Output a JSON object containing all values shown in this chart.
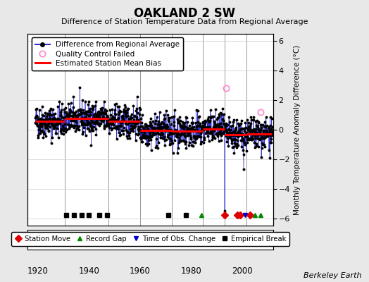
{
  "title": "OAKLAND 2 SW",
  "subtitle": "Difference of Station Temperature Data from Regional Average",
  "ylabel": "Monthly Temperature Anomaly Difference (°C)",
  "xlabel_years": [
    1920,
    1940,
    1960,
    1980,
    2000
  ],
  "ylim": [
    -6.5,
    6.5
  ],
  "yticks": [
    -6,
    -4,
    -2,
    0,
    2,
    4,
    6
  ],
  "xlim": [
    1916,
    2012
  ],
  "bg_color": "#e8e8e8",
  "plot_bg_color": "#ffffff",
  "line_color": "#3333cc",
  "bias_color": "#ff0000",
  "marker_color": "#000000",
  "qc_color": "#ff88cc",
  "seed": 42,
  "segment_biases": [
    {
      "start": 1919.0,
      "end": 1930.5,
      "bias": 0.55
    },
    {
      "start": 1930.5,
      "end": 1947.5,
      "bias": 0.75
    },
    {
      "start": 1947.5,
      "end": 1960.0,
      "bias": 0.55
    },
    {
      "start": 1960.0,
      "end": 1972.5,
      "bias": -0.05
    },
    {
      "start": 1972.5,
      "end": 1984.5,
      "bias": -0.1
    },
    {
      "start": 1984.5,
      "end": 1993.0,
      "bias": 0.05
    },
    {
      "start": 1993.0,
      "end": 2001.5,
      "bias": -0.35
    },
    {
      "start": 2001.5,
      "end": 2011.5,
      "bias": -0.3
    }
  ],
  "vertical_lines": [
    1930.5,
    1947.5,
    1960.0,
    1972.5,
    1984.5,
    1993.0,
    2001.5
  ],
  "station_moves": [
    1993,
    1998,
    1999,
    2003
  ],
  "record_gaps": [
    1984,
    2005,
    2007
  ],
  "obs_changes": [
    2001
  ],
  "empirical_breaks": [
    1931,
    1934,
    1937,
    1940,
    1944,
    1947,
    1971,
    1978
  ],
  "qc_failed": [
    {
      "year": 1993.5,
      "value": 2.8
    },
    {
      "year": 2007.2,
      "value": 1.2
    }
  ],
  "spike_points": [
    {
      "year": 1993.1,
      "value": -5.5
    },
    {
      "year": 2000.5,
      "value": -2.7
    }
  ],
  "event_y": -5.8,
  "berkeley_earth_text": "Berkeley Earth"
}
